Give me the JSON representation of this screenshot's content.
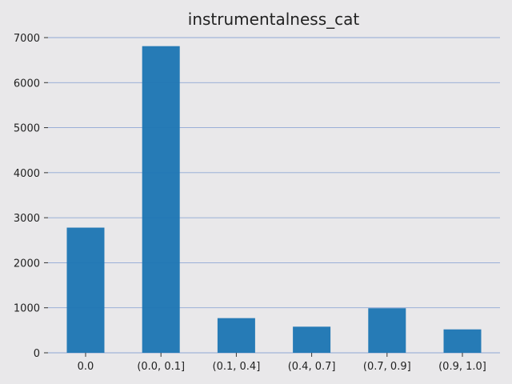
{
  "chart_data": {
    "type": "bar",
    "title": "instrumentalness_cat",
    "xlabel": "",
    "ylabel": "",
    "categories": [
      "0.0",
      "(0.0, 0.1]",
      "(0.1, 0.4]",
      "(0.4, 0.7]",
      "(0.7, 0.9]",
      "(0.9, 1.0]"
    ],
    "values": [
      2780,
      6810,
      770,
      580,
      990,
      520
    ],
    "ylim": [
      0,
      7000
    ],
    "yticks": [
      0,
      1000,
      2000,
      3000,
      4000,
      5000,
      6000,
      7000
    ],
    "grid": "horizontal",
    "colors": {
      "bar": "#1f77b4",
      "background": "#e9e8ea",
      "grid": "#8fa7d4"
    }
  }
}
